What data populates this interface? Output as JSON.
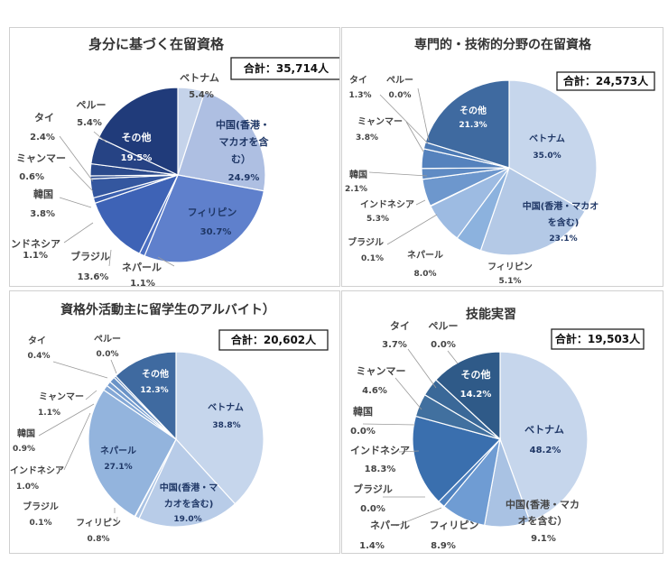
{
  "chart_data": [
    {
      "type": "pie",
      "title": "身分に基づく在留資格",
      "total_label": "合計：35,714人",
      "slices": [
        {
          "name": "ベトナム",
          "value": 5.4,
          "label": "5.4%",
          "color": "#c5d3ea"
        },
        {
          "name": "中国(香港・マカオを含む）",
          "value": 24.9,
          "label": "24.9%",
          "color": "#aebfe2"
        },
        {
          "name": "フィリピン",
          "value": 30.7,
          "label": "30.7%",
          "color": "#5f80cc"
        },
        {
          "name": "ネパール",
          "value": 1.1,
          "label": "1.1%",
          "color": "#4c70c2"
        },
        {
          "name": "ブラジル",
          "value": 13.6,
          "label": "13.6%",
          "color": "#3e63b6"
        },
        {
          "name": "インドネシア",
          "value": 1.1,
          "label": "1.1%",
          "color": "#3a5fae"
        },
        {
          "name": "韓国",
          "value": 3.8,
          "label": "3.8%",
          "color": "#34579f"
        },
        {
          "name": "ミャンマー",
          "value": 0.6,
          "label": "0.6%",
          "color": "#2f5096"
        },
        {
          "name": "タイ",
          "value": 2.4,
          "label": "2.4%",
          "color": "#2b4a8c"
        },
        {
          "name": "ペルー",
          "value": 5.4,
          "label": "5.4%",
          "color": "#264384"
        },
        {
          "name": "その他",
          "value": 19.5,
          "label": "19.5%",
          "color": "#203b7a"
        }
      ]
    },
    {
      "type": "pie",
      "title": "専門的・技術的分野の在留資格",
      "total_label": "合計：24,573人",
      "slices": [
        {
          "name": "ベトナム",
          "value": 35.0,
          "label": "35.0%",
          "color": "#c6d6ec"
        },
        {
          "name": "中国(香港・マカオを含む)",
          "value": 23.1,
          "label": "23.1%",
          "color": "#b4c9e6"
        },
        {
          "name": "フィリピン",
          "value": 5.1,
          "label": "5.1%",
          "color": "#8cb2de"
        },
        {
          "name": "ネパール",
          "value": 8.0,
          "label": "8.0%",
          "color": "#9dbbe2"
        },
        {
          "name": "ブラジル",
          "value": 0.1,
          "label": "0.1%",
          "color": "#7fa6d6"
        },
        {
          "name": "インドネシア",
          "value": 5.3,
          "label": "5.3%",
          "color": "#6d97cd"
        },
        {
          "name": "韓国",
          "value": 2.1,
          "label": "2.1%",
          "color": "#5f8bc4"
        },
        {
          "name": "ミャンマー",
          "value": 3.8,
          "label": "3.8%",
          "color": "#5582bd"
        },
        {
          "name": "タイ",
          "value": 1.3,
          "label": "1.3%",
          "color": "#4c7ab5"
        },
        {
          "name": "ペルー",
          "value": 0.0,
          "label": "0.0%",
          "color": "#4573ad"
        },
        {
          "name": "その他",
          "value": 21.3,
          "label": "21.3%",
          "color": "#3f6aa0"
        }
      ]
    },
    {
      "type": "pie",
      "title": "資格外活動主に留学生のアルバイト）",
      "total_label": "合計：20,602人",
      "slices": [
        {
          "name": "ベトナム",
          "value": 38.8,
          "label": "38.8%",
          "color": "#c6d6ec"
        },
        {
          "name": "中国(香港・マカオを含む)",
          "value": 19.0,
          "label": "19.0%",
          "color": "#b8cce8"
        },
        {
          "name": "フィリピン",
          "value": 0.8,
          "label": "0.8%",
          "color": "#a9c2e3"
        },
        {
          "name": "ブラジル",
          "value": 0.1,
          "label": "0.1%",
          "color": "#9fbbe0"
        },
        {
          "name": "ネパール",
          "value": 27.1,
          "label": "27.1%",
          "color": "#93b4dd"
        },
        {
          "name": "インドネシア",
          "value": 1.0,
          "label": "1.0%",
          "color": "#84a8d6"
        },
        {
          "name": "韓国",
          "value": 0.9,
          "label": "0.9%",
          "color": "#769dcf"
        },
        {
          "name": "ミャンマー",
          "value": 1.1,
          "label": "1.1%",
          "color": "#6a93c7"
        },
        {
          "name": "タイ",
          "value": 0.4,
          "label": "0.4%",
          "color": "#5c86bd"
        },
        {
          "name": "ペルー",
          "value": 0.0,
          "label": "0.0%",
          "color": "#4f79b1"
        },
        {
          "name": "その他",
          "value": 12.3,
          "label": "12.3%",
          "color": "#3f6aa0"
        }
      ]
    },
    {
      "type": "pie",
      "title": "技能実習",
      "total_label": "合計：19,503人",
      "slices": [
        {
          "name": "ベトナム",
          "value": 48.2,
          "label": "48.2%",
          "color": "#c6d6ec"
        },
        {
          "name": "中国(香港・マカオを含む)",
          "value": 9.1,
          "label": "9.1%",
          "color": "#a9c2e3"
        },
        {
          "name": "フィリピン",
          "value": 8.9,
          "label": "8.9%",
          "color": "#6f9cd3"
        },
        {
          "name": "ネパール",
          "value": 1.4,
          "label": "1.4%",
          "color": "#4f82c0"
        },
        {
          "name": "ブラジル",
          "value": 0.0,
          "label": "0.0%",
          "color": "#4478b8"
        },
        {
          "name": "インドネシア",
          "value": 18.3,
          "label": "18.3%",
          "color": "#3a6fae"
        },
        {
          "name": "韓国",
          "value": 0.0,
          "label": "0.0%",
          "color": "#3968a5"
        },
        {
          "name": "ミャンマー",
          "value": 4.6,
          "label": "4.6%",
          "color": "#41709f"
        },
        {
          "name": "タイ",
          "value": 3.7,
          "label": "3.7%",
          "color": "#3a6898"
        },
        {
          "name": "ペルー",
          "value": 0.0,
          "label": "0.0%",
          "color": "#355f8c"
        },
        {
          "name": "その他",
          "value": 14.2,
          "label": "14.2%",
          "color": "#2f5a88"
        }
      ]
    }
  ]
}
